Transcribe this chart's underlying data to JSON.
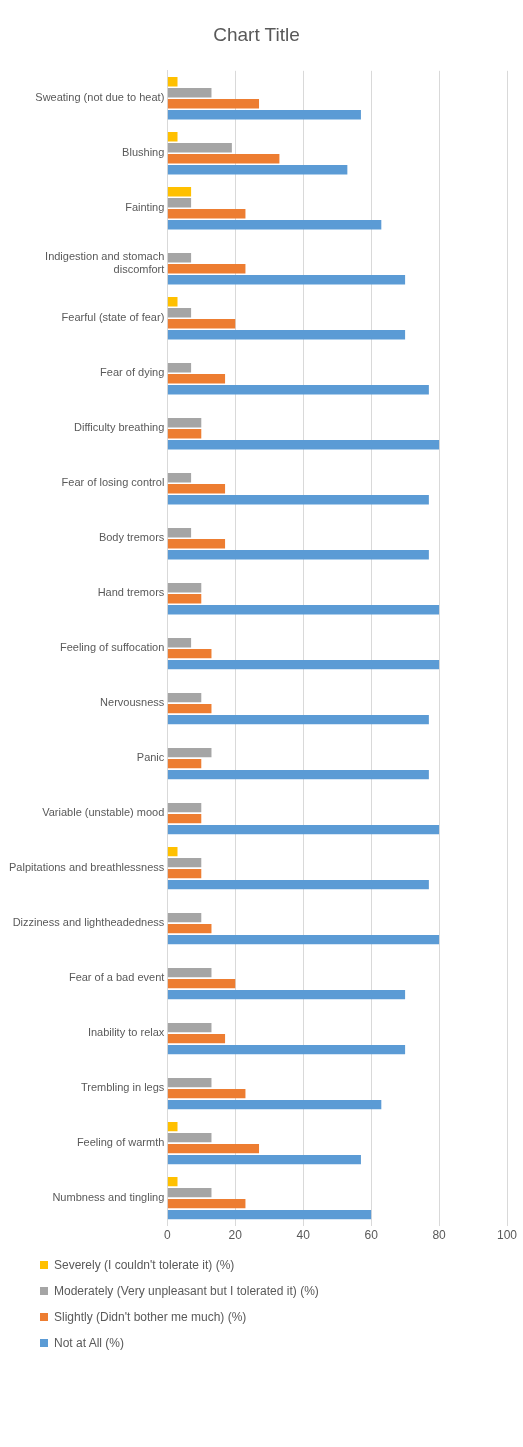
{
  "chart_data": {
    "type": "bar",
    "orientation": "horizontal",
    "title": "Chart Title",
    "categories": [
      "Sweating (not due to heat)",
      "Blushing",
      "Fainting",
      "Indigestion and stomach discomfort",
      "Fearful (state of fear)",
      "Fear of dying",
      "Difficulty breathing",
      "Fear of losing control",
      "Body tremors",
      "Hand tremors",
      "Feeling of suffocation",
      "Nervousness",
      "Panic",
      "Variable (unstable) mood",
      "Palpitations and breathlessness",
      "Dizziness and lightheadedness",
      "Fear of a bad event",
      "Inability to relax",
      "Trembling in legs",
      "Feeling of warmth",
      "Numbness and tingling"
    ],
    "series": [
      {
        "name": "Severely (I couldn't tolerate it) (%)",
        "color": "#ffc000",
        "values": [
          3,
          3,
          7,
          0,
          3,
          0,
          0,
          0,
          0,
          0,
          0,
          0,
          0,
          0,
          3,
          0,
          0,
          0,
          0,
          3,
          3
        ]
      },
      {
        "name": "Moderately (Very unpleasant but I tolerated it) (%)",
        "color": "#a5a5a5",
        "values": [
          13,
          19,
          7,
          7,
          7,
          7,
          10,
          7,
          7,
          10,
          7,
          10,
          13,
          10,
          10,
          10,
          13,
          13,
          13,
          13,
          13
        ]
      },
      {
        "name": "Slightly (Didn't bother me much) (%)",
        "color": "#ed7d31",
        "values": [
          27,
          33,
          23,
          23,
          20,
          17,
          10,
          17,
          17,
          10,
          13,
          13,
          10,
          10,
          10,
          13,
          20,
          17,
          23,
          27,
          23
        ]
      },
      {
        "name": "Not at All (%)",
        "color": "#5b9bd5",
        "values": [
          57,
          53,
          63,
          70,
          70,
          77,
          80,
          77,
          77,
          80,
          80,
          77,
          77,
          80,
          77,
          80,
          70,
          70,
          63,
          57,
          60
        ]
      }
    ],
    "xlim": [
      0,
      100
    ],
    "xticks": [
      0,
      20,
      40,
      60,
      80,
      100
    ],
    "grid": "x",
    "legend": "bottom"
  }
}
